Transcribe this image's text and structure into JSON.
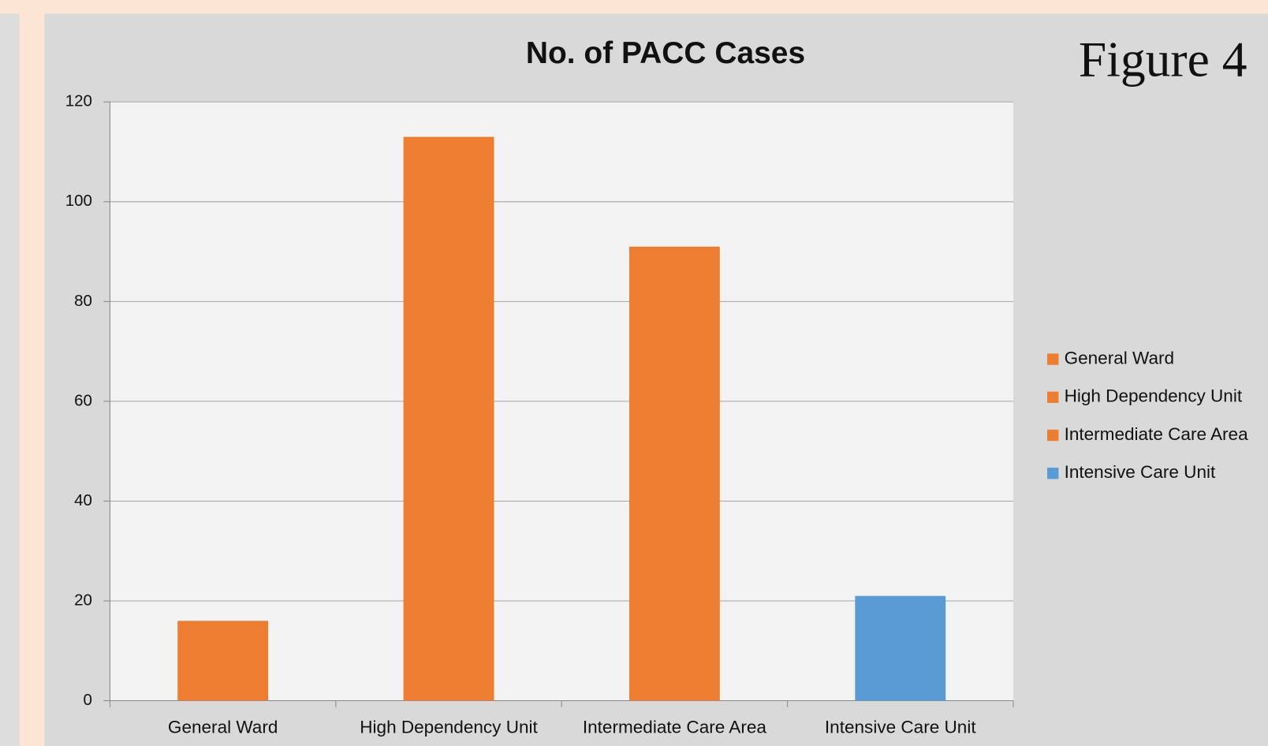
{
  "chart_data": {
    "type": "bar",
    "title": "No. of PACC Cases",
    "annotation": "Figure 4",
    "categories": [
      "General Ward",
      "High Dependency Unit",
      "Intermediate Care Area",
      "Intensive Care Unit"
    ],
    "values": [
      16,
      113,
      91,
      21
    ],
    "colors": [
      "#ed7d31",
      "#ed7d31",
      "#ed7d31",
      "#5b9bd5"
    ],
    "ylim": [
      0,
      120
    ],
    "yticks": [
      0,
      20,
      40,
      60,
      80,
      100,
      120
    ],
    "grid": true,
    "legend": "right"
  }
}
